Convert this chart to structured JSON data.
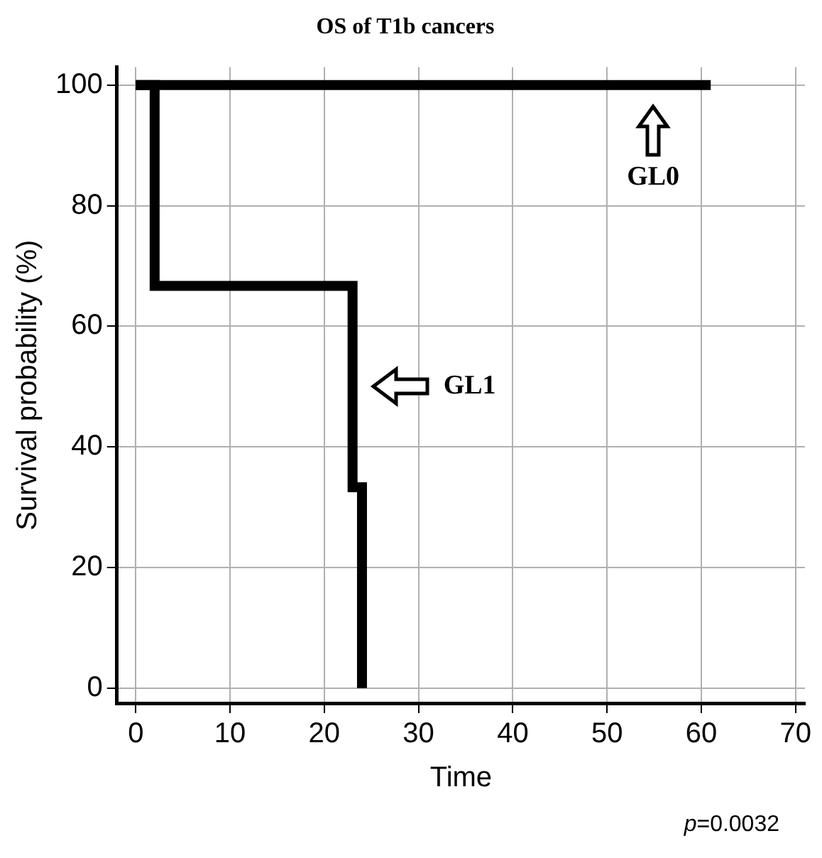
{
  "chart_data": {
    "type": "step",
    "title": "OS of T1b cancers",
    "xlabel": "Time",
    "ylabel": "Survival probability (%)",
    "xlim": [
      -2,
      71
    ],
    "xticks": [
      0,
      10,
      20,
      30,
      40,
      50,
      60,
      70
    ],
    "ylim": [
      -2.5,
      103
    ],
    "yticks": [
      0,
      20,
      40,
      60,
      80,
      100
    ],
    "series": [
      {
        "color": "#000000",
        "x": [
          0,
          61
        ],
        "values": [
          100,
          100
        ]
      },
      {
        "color": "#000000",
        "x": [
          0,
          2,
          23,
          24
        ],
        "values": [
          100,
          66.7,
          33.3,
          0
        ]
      }
    ],
    "annotations": [
      "GL0",
      "GL1",
      "p=0.0032"
    ],
    "grid": true,
    "legend": false,
    "marker": "none",
    "line_style": "solid"
  }
}
